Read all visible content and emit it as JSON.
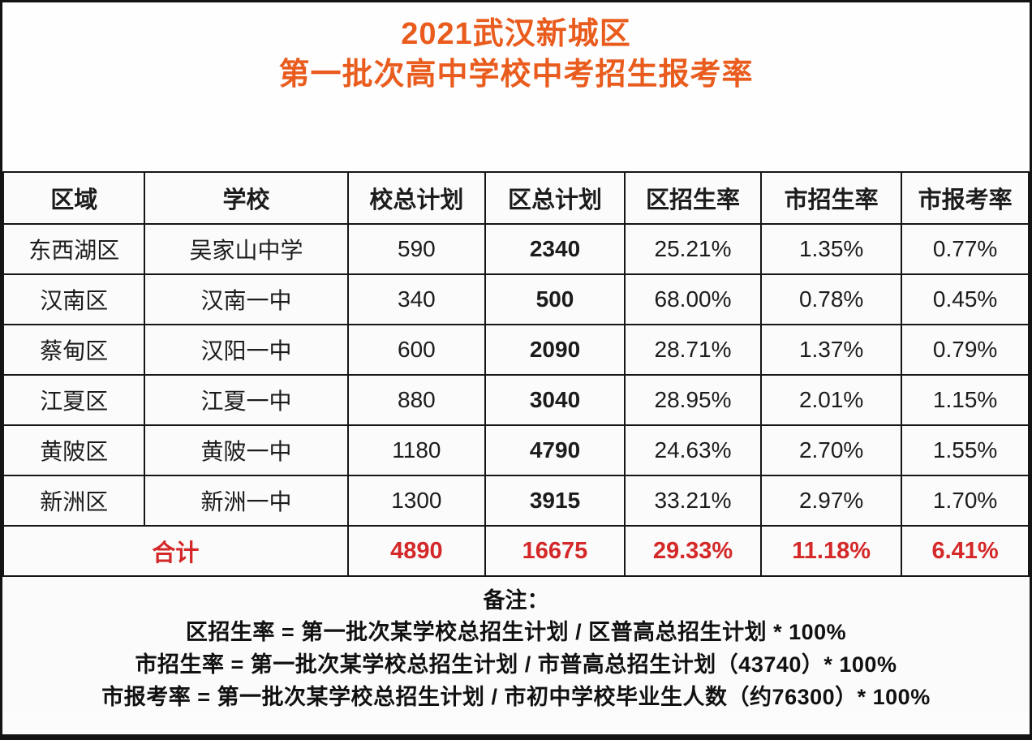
{
  "header": {
    "title_line1": "2021武汉新城区",
    "title_line2": "第一批次高中学校中考招生报考率"
  },
  "chart_data": {
    "type": "table",
    "title": "2021武汉新城区 第一批次高中学校中考招生报考率",
    "columns": [
      "区域",
      "学校",
      "校总计划",
      "区总计划",
      "区招生率",
      "市招生率",
      "市报考率"
    ],
    "rows": [
      [
        "东西湖区",
        "吴家山中学",
        "590",
        "2340",
        "25.21%",
        "1.35%",
        "0.77%"
      ],
      [
        "汉南区",
        "汉南一中",
        "340",
        "500",
        "68.00%",
        "0.78%",
        "0.45%"
      ],
      [
        "蔡甸区",
        "汉阳一中",
        "600",
        "2090",
        "28.71%",
        "1.37%",
        "0.79%"
      ],
      [
        "江夏区",
        "江夏一中",
        "880",
        "3040",
        "28.95%",
        "2.01%",
        "1.15%"
      ],
      [
        "黄陂区",
        "黄陂一中",
        "1180",
        "4790",
        "24.63%",
        "2.70%",
        "1.55%"
      ],
      [
        "新洲区",
        "新洲一中",
        "1300",
        "3915",
        "33.21%",
        "2.97%",
        "1.70%"
      ]
    ],
    "total": {
      "label": "合计",
      "values": [
        "4890",
        "16675",
        "29.33%",
        "11.18%",
        "6.41%"
      ]
    },
    "notes": {
      "heading": "备注：",
      "lines": [
        "区招生率 = 第一批次某学校总招生计划 / 区普高总招生计划 * 100%",
        "市招生率 = 第一批次某学校总招生计划 / 市普高总招生计划（43740）* 100%",
        "市报考率 = 第一批次某学校总招生计划 / 市初中学校毕业生人数（约76300）* 100%"
      ]
    }
  },
  "colors": {
    "title_orange": "#e95c1e",
    "total_red": "#d42829",
    "text_black": "#1c1c1c"
  }
}
